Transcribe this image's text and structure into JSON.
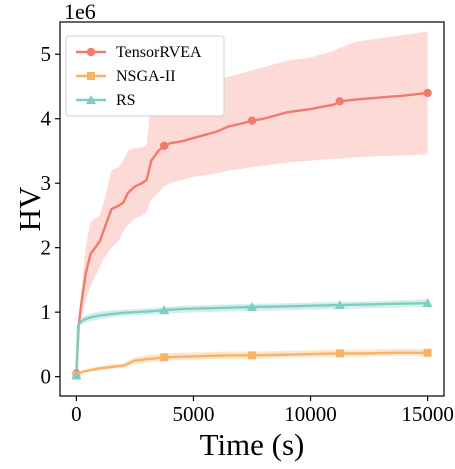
{
  "chart_data": {
    "type": "line",
    "xlabel": "Time (s)",
    "ylabel": "HV",
    "y_multiplier_label": "1e6",
    "xlim": [
      -700,
      15700
    ],
    "ylim": [
      -0.3,
      5.5
    ],
    "xticks": [
      0,
      5000,
      10000,
      15000
    ],
    "yticks": [
      0,
      1,
      2,
      3,
      4,
      5
    ],
    "grid": false,
    "legend_position": "top-left",
    "series": [
      {
        "name": "TensorRVEA",
        "color": "#f27a6b",
        "band_color": "#fbd3cf",
        "marker": "circle",
        "x": [
          0,
          100,
          200,
          300,
          400,
          600,
          800,
          1000,
          1200,
          1500,
          1800,
          2000,
          2200,
          2500,
          2800,
          3000,
          3200,
          3500,
          3750,
          4000,
          4500,
          5000,
          5500,
          6000,
          6500,
          7000,
          7500,
          8000,
          8500,
          9000,
          10000,
          11000,
          11250,
          12000,
          13000,
          14000,
          15000
        ],
        "y": [
          0.05,
          0.8,
          1.1,
          1.35,
          1.6,
          1.9,
          2.0,
          2.1,
          2.3,
          2.6,
          2.65,
          2.7,
          2.85,
          2.95,
          3.0,
          3.05,
          3.35,
          3.5,
          3.58,
          3.62,
          3.65,
          3.7,
          3.75,
          3.8,
          3.88,
          3.92,
          3.97,
          4.0,
          4.05,
          4.1,
          4.15,
          4.22,
          4.27,
          4.3,
          4.33,
          4.36,
          4.4
        ],
        "lower": [
          0.05,
          0.7,
          0.9,
          1.05,
          1.2,
          1.4,
          1.55,
          1.7,
          1.85,
          2.0,
          2.1,
          2.25,
          2.35,
          2.45,
          2.5,
          2.55,
          2.75,
          2.85,
          2.95,
          3.0,
          3.05,
          3.1,
          3.12,
          3.15,
          3.2,
          3.22,
          3.25,
          3.27,
          3.3,
          3.32,
          3.35,
          3.38,
          3.38,
          3.4,
          3.42,
          3.43,
          3.45
        ],
        "upper": [
          0.05,
          0.9,
          1.3,
          1.65,
          2.0,
          2.4,
          2.45,
          2.5,
          2.75,
          3.2,
          3.25,
          3.35,
          3.5,
          3.55,
          3.55,
          3.6,
          4.3,
          4.35,
          4.4,
          4.45,
          4.5,
          4.55,
          4.6,
          4.6,
          4.65,
          4.7,
          4.75,
          4.8,
          4.85,
          4.9,
          4.95,
          5.05,
          5.1,
          5.2,
          5.25,
          5.3,
          5.35
        ],
        "marker_x": [
          0,
          3750,
          7500,
          11250,
          15000
        ],
        "marker_y": [
          0.05,
          3.58,
          3.97,
          4.27,
          4.4
        ]
      },
      {
        "name": "NSGA-II",
        "color": "#f9b366",
        "band_color": "#fce3c6",
        "marker": "square",
        "x": [
          0,
          100,
          300,
          600,
          1000,
          1500,
          2000,
          2200,
          2500,
          3000,
          3750,
          4500,
          5500,
          6500,
          7500,
          9000,
          10000,
          11250,
          12500,
          13500,
          15000
        ],
        "y": [
          0.02,
          0.05,
          0.08,
          0.1,
          0.13,
          0.15,
          0.17,
          0.2,
          0.25,
          0.27,
          0.3,
          0.31,
          0.32,
          0.33,
          0.33,
          0.34,
          0.35,
          0.36,
          0.36,
          0.37,
          0.37
        ],
        "lower": [
          0.02,
          0.04,
          0.06,
          0.08,
          0.1,
          0.12,
          0.14,
          0.16,
          0.2,
          0.22,
          0.25,
          0.26,
          0.27,
          0.28,
          0.28,
          0.29,
          0.3,
          0.31,
          0.31,
          0.32,
          0.32
        ],
        "upper": [
          0.02,
          0.06,
          0.1,
          0.13,
          0.16,
          0.19,
          0.21,
          0.25,
          0.3,
          0.33,
          0.36,
          0.37,
          0.38,
          0.39,
          0.39,
          0.4,
          0.41,
          0.42,
          0.42,
          0.43,
          0.43
        ],
        "marker_x": [
          0,
          3750,
          7500,
          11250,
          15000
        ],
        "marker_y": [
          0.02,
          0.3,
          0.33,
          0.36,
          0.37
        ]
      },
      {
        "name": "RS",
        "color": "#7fcdc0",
        "band_color": "#cdece6",
        "marker": "triangle",
        "x": [
          0,
          80,
          150,
          300,
          600,
          1000,
          1500,
          2000,
          2500,
          3000,
          3750,
          4500,
          5500,
          6500,
          7500,
          9000,
          10000,
          11250,
          12500,
          13500,
          15000
        ],
        "y": [
          0.02,
          0.8,
          0.84,
          0.88,
          0.92,
          0.95,
          0.97,
          0.99,
          1.0,
          1.01,
          1.03,
          1.05,
          1.06,
          1.07,
          1.08,
          1.09,
          1.1,
          1.11,
          1.12,
          1.13,
          1.14
        ],
        "lower": [
          0.02,
          0.74,
          0.78,
          0.82,
          0.86,
          0.89,
          0.92,
          0.94,
          0.95,
          0.96,
          0.98,
          0.99,
          1.0,
          1.01,
          1.02,
          1.03,
          1.04,
          1.05,
          1.06,
          1.07,
          1.08
        ],
        "upper": [
          0.02,
          0.86,
          0.9,
          0.94,
          0.98,
          1.01,
          1.03,
          1.04,
          1.05,
          1.06,
          1.08,
          1.1,
          1.11,
          1.12,
          1.13,
          1.14,
          1.15,
          1.16,
          1.17,
          1.18,
          1.2
        ],
        "marker_x": [
          0,
          3750,
          7500,
          11250,
          15000
        ],
        "marker_y": [
          0.02,
          1.03,
          1.08,
          1.11,
          1.14
        ]
      }
    ]
  }
}
